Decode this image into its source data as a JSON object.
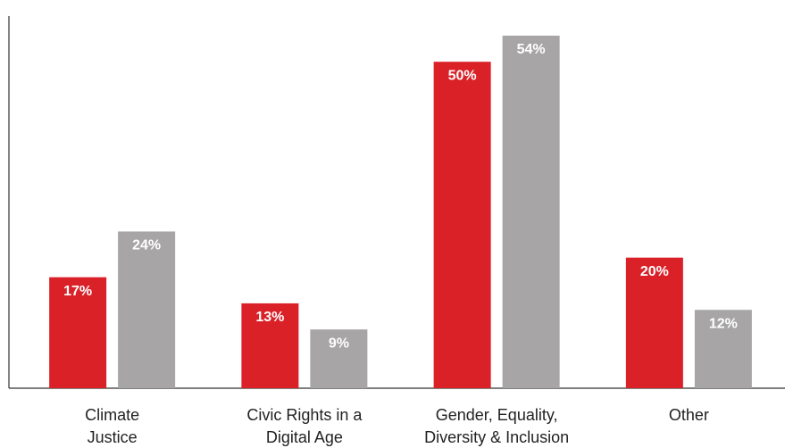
{
  "chart_data": {
    "type": "bar",
    "categories": [
      "Climate Justice",
      "Civic Rights in a Digital Age",
      "Gender, Equality, Diversity & Inclusion",
      "Other"
    ],
    "series": [
      {
        "color": "#da2128",
        "values": [
          17,
          13,
          50,
          20
        ],
        "value_labels": [
          "17%",
          "13%",
          "50%",
          "20%"
        ]
      },
      {
        "color": "#a7a5a6",
        "values": [
          24,
          9,
          54,
          12
        ],
        "value_labels": [
          "24%",
          "9%",
          "54%",
          "12%"
        ]
      }
    ],
    "ylim": [
      0,
      57
    ]
  }
}
